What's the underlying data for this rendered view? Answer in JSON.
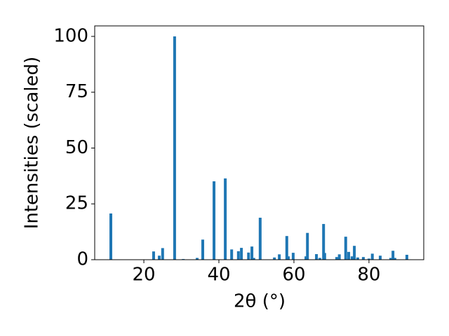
{
  "chart_data": {
    "type": "bar",
    "xlabel": "2θ (°)",
    "ylabel": "Intensities (scaled)",
    "color": "#1f77b4",
    "x": [
      11.2,
      22.6,
      24.1,
      25.0,
      28.2,
      30.5,
      34.2,
      35.7,
      38.7,
      41.7,
      43.4,
      45.2,
      46.0,
      47.9,
      48.8,
      49.3,
      51.0,
      54.8,
      56.1,
      58.1,
      58.5,
      59.8,
      63.2,
      63.6,
      66.0,
      66.9,
      67.9,
      68.2,
      71.4,
      72.1,
      73.8,
      74.6,
      75.5,
      76.1,
      77.0,
      78.5,
      80.0,
      80.9,
      83.0,
      85.8,
      86.4,
      86.9,
      90.1
    ],
    "values": [
      20.7,
      3.7,
      1.8,
      5.2,
      100,
      0.3,
      0.8,
      9.0,
      35.1,
      36.4,
      4.6,
      3.8,
      5.3,
      3.2,
      5.9,
      0.8,
      18.8,
      1.0,
      2.4,
      10.6,
      1.5,
      3.1,
      1.5,
      12.0,
      2.5,
      0.8,
      16.0,
      3.0,
      1.2,
      2.4,
      10.3,
      3.5,
      1.5,
      6.2,
      1.0,
      1.2,
      0.5,
      2.7,
      1.8,
      0.8,
      4.0,
      0.8,
      2.2
    ],
    "xlim": [
      6.9,
      94.6
    ],
    "ylim": [
      0,
      104.7
    ],
    "xticks": [
      20,
      40,
      60,
      80
    ],
    "yticks": [
      0,
      25,
      50,
      75,
      100
    ]
  }
}
